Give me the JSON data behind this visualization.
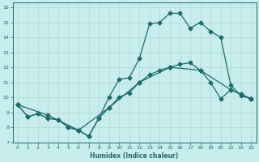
{
  "xlabel": "Humidex (Indice chaleur)",
  "bg_color": "#c8eded",
  "line_color": "#1e6b6b",
  "grid_color": "#b0d8d8",
  "xlim": [
    -0.5,
    23.5
  ],
  "ylim": [
    7,
    16.3
  ],
  "xticks": [
    0,
    1,
    2,
    3,
    4,
    5,
    6,
    7,
    8,
    9,
    10,
    11,
    12,
    13,
    14,
    15,
    16,
    17,
    18,
    19,
    20,
    21,
    22,
    23
  ],
  "yticks": [
    7,
    8,
    9,
    10,
    11,
    12,
    13,
    14,
    15,
    16
  ],
  "line1_x": [
    0,
    1,
    2,
    3,
    4,
    5,
    6,
    7,
    8,
    9,
    10,
    11,
    12,
    13,
    14,
    15,
    16,
    17,
    18,
    19,
    20,
    21,
    22,
    23
  ],
  "line1_y": [
    9.5,
    8.7,
    8.9,
    8.6,
    8.5,
    8.0,
    7.8,
    7.4,
    8.6,
    10.0,
    11.2,
    11.3,
    12.6,
    14.9,
    15.0,
    15.6,
    15.6,
    14.6,
    15.0,
    14.4,
    14.0,
    10.8,
    10.1,
    9.9
  ],
  "line2_x": [
    0,
    1,
    2,
    3,
    4,
    5,
    6,
    7,
    8,
    9,
    10,
    11,
    12,
    13,
    14,
    15,
    16,
    17,
    18,
    19,
    20,
    21,
    22,
    23
  ],
  "line2_y": [
    9.5,
    8.7,
    8.9,
    8.6,
    8.5,
    8.0,
    7.8,
    7.4,
    8.6,
    9.3,
    10.0,
    10.3,
    11.0,
    11.5,
    11.8,
    12.0,
    12.2,
    12.3,
    11.8,
    11.0,
    9.9,
    10.5,
    10.2,
    9.9
  ],
  "line3_x": [
    0,
    3,
    6,
    9,
    12,
    15,
    18,
    21,
    23
  ],
  "line3_y": [
    9.5,
    8.8,
    7.8,
    9.3,
    11.0,
    12.0,
    11.8,
    10.5,
    9.9
  ],
  "markersize": 2.5
}
